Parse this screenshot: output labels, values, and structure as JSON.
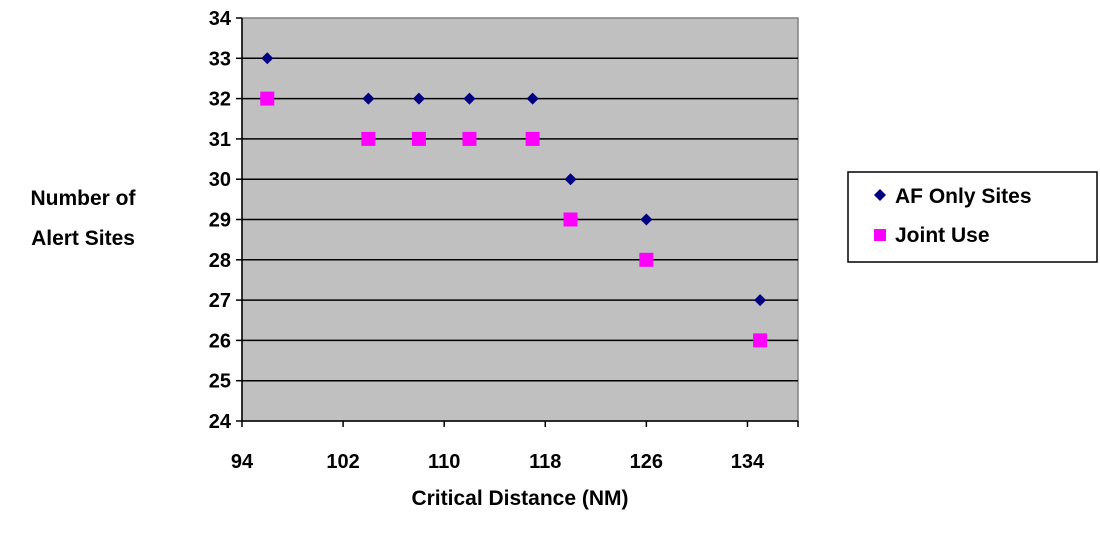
{
  "chart_data": {
    "type": "scatter",
    "xlabel": "Critical Distance (NM)",
    "ylabel_lines": [
      "Number of",
      "Alert Sites"
    ],
    "xlim": [
      94,
      138
    ],
    "ylim": [
      24,
      34
    ],
    "xticks": [
      94,
      102,
      110,
      118,
      126,
      134
    ],
    "yticks": [
      24,
      25,
      26,
      27,
      28,
      29,
      30,
      31,
      32,
      33,
      34
    ],
    "grid": "horizontal",
    "plot_background": "#c0c0c0",
    "legend_position": "right",
    "series": [
      {
        "name": "AF Only Sites",
        "marker": "diamond",
        "color": "#000080",
        "x": [
          96,
          104,
          108,
          112,
          117,
          120,
          126,
          135
        ],
        "y": [
          33,
          32,
          32,
          32,
          32,
          30,
          29,
          27
        ]
      },
      {
        "name": "Joint Use",
        "marker": "square",
        "color": "#ff00ff",
        "x": [
          96,
          104,
          108,
          112,
          117,
          120,
          126,
          135
        ],
        "y": [
          32,
          31,
          31,
          31,
          31,
          29,
          28,
          26
        ]
      }
    ]
  }
}
